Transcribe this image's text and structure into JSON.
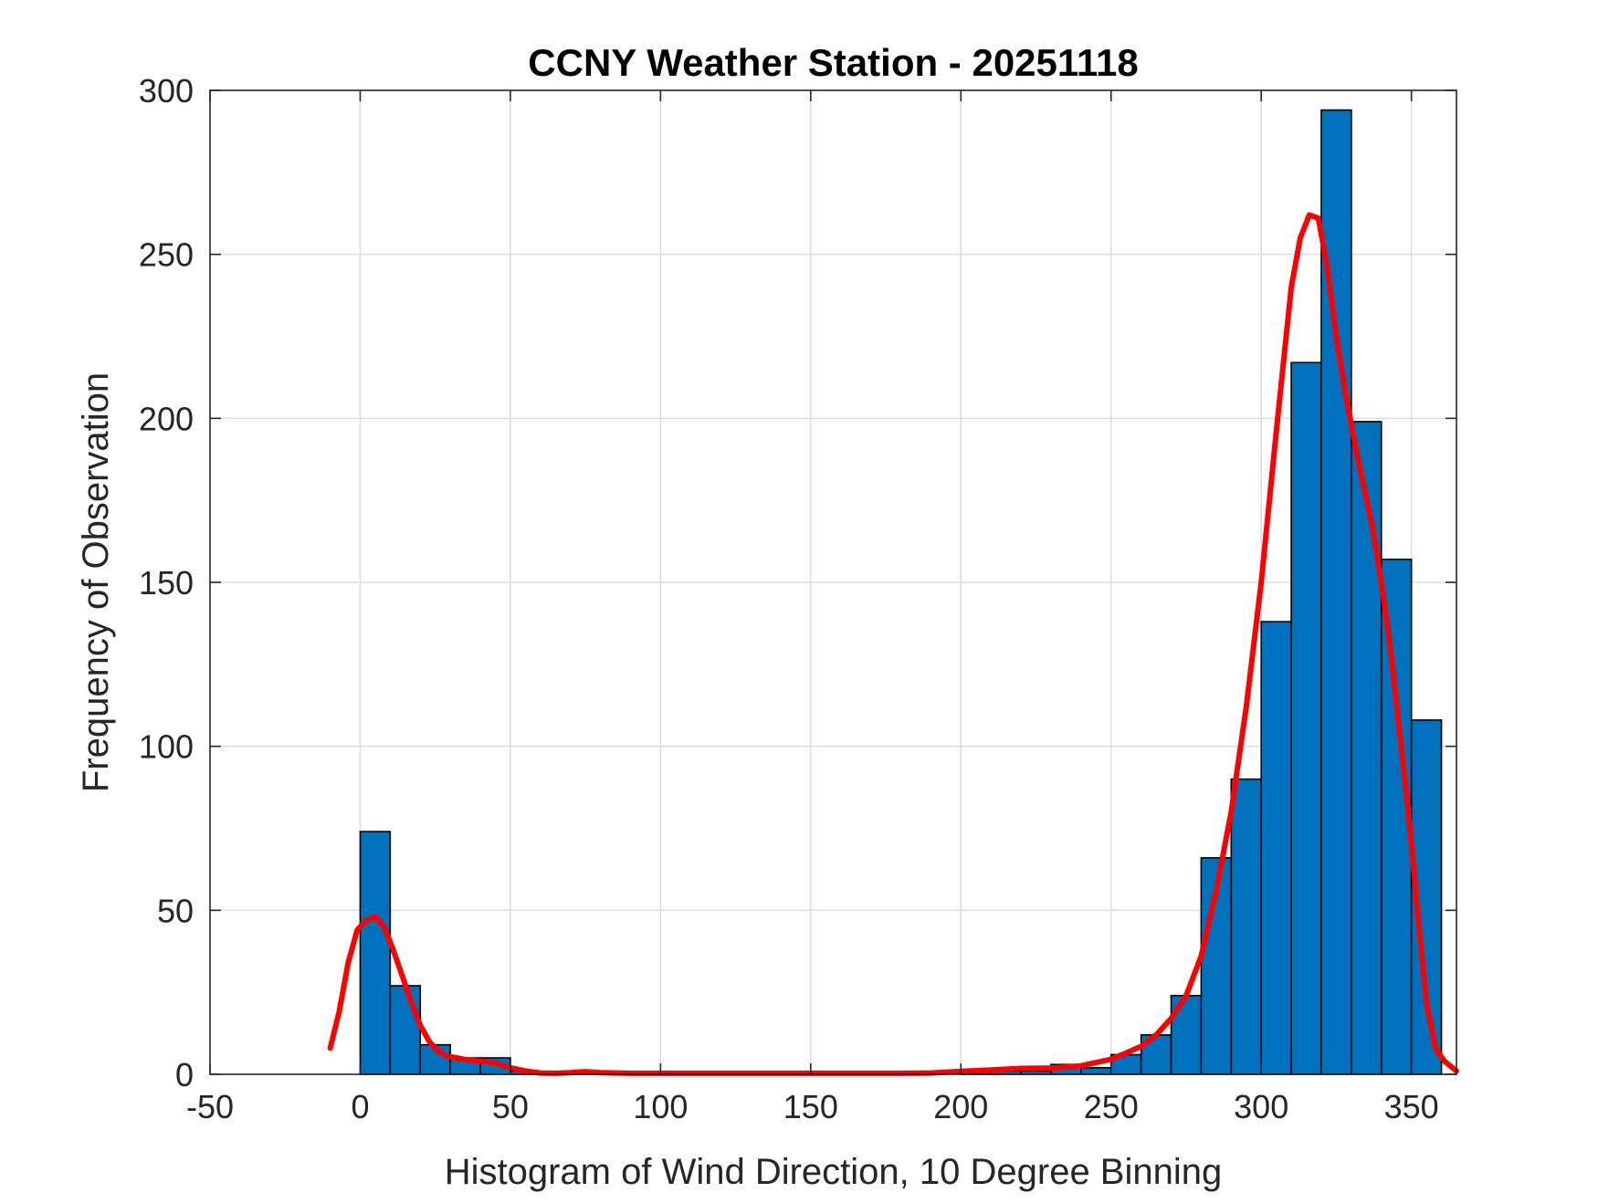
{
  "chart_data": {
    "type": "bar",
    "title": "CCNY Weather Station - 20251118",
    "xlabel": "Histogram of Wind Direction, 10 Degree Binning",
    "ylabel": "Frequency of Observation",
    "xlim": [
      -50,
      365
    ],
    "ylim": [
      0,
      300
    ],
    "xticks": [
      -50,
      0,
      50,
      100,
      150,
      200,
      250,
      300,
      350
    ],
    "yticks": [
      0,
      50,
      100,
      150,
      200,
      250,
      300
    ],
    "grid": true,
    "legend": "none",
    "colors": {
      "bars": "#0072BD",
      "bar_edge": "#000000",
      "curve": "#FF0000",
      "grid": "#dddddd",
      "axis": "#262626"
    },
    "bins": [
      {
        "start": 0,
        "end": 10,
        "count": 74
      },
      {
        "start": 10,
        "end": 20,
        "count": 27
      },
      {
        "start": 20,
        "end": 30,
        "count": 9
      },
      {
        "start": 30,
        "end": 40,
        "count": 5
      },
      {
        "start": 40,
        "end": 50,
        "count": 5
      },
      {
        "start": 50,
        "end": 60,
        "count": 1
      },
      {
        "start": 60,
        "end": 70,
        "count": 0
      },
      {
        "start": 70,
        "end": 80,
        "count": 1
      },
      {
        "start": 80,
        "end": 90,
        "count": 0
      },
      {
        "start": 90,
        "end": 100,
        "count": 0
      },
      {
        "start": 100,
        "end": 110,
        "count": 0
      },
      {
        "start": 110,
        "end": 120,
        "count": 0
      },
      {
        "start": 120,
        "end": 130,
        "count": 0
      },
      {
        "start": 130,
        "end": 140,
        "count": 0
      },
      {
        "start": 140,
        "end": 150,
        "count": 0
      },
      {
        "start": 150,
        "end": 160,
        "count": 0
      },
      {
        "start": 160,
        "end": 170,
        "count": 0
      },
      {
        "start": 170,
        "end": 180,
        "count": 0
      },
      {
        "start": 180,
        "end": 190,
        "count": 0
      },
      {
        "start": 190,
        "end": 200,
        "count": 0
      },
      {
        "start": 200,
        "end": 210,
        "count": 1
      },
      {
        "start": 210,
        "end": 220,
        "count": 1
      },
      {
        "start": 220,
        "end": 230,
        "count": 1
      },
      {
        "start": 230,
        "end": 240,
        "count": 3
      },
      {
        "start": 240,
        "end": 250,
        "count": 2
      },
      {
        "start": 250,
        "end": 260,
        "count": 6
      },
      {
        "start": 260,
        "end": 270,
        "count": 12
      },
      {
        "start": 270,
        "end": 280,
        "count": 24
      },
      {
        "start": 280,
        "end": 290,
        "count": 66
      },
      {
        "start": 290,
        "end": 300,
        "count": 90
      },
      {
        "start": 300,
        "end": 310,
        "count": 138
      },
      {
        "start": 310,
        "end": 320,
        "count": 217
      },
      {
        "start": 320,
        "end": 330,
        "count": 294
      },
      {
        "start": 330,
        "end": 340,
        "count": 199
      },
      {
        "start": 340,
        "end": 350,
        "count": 157
      },
      {
        "start": 350,
        "end": 360,
        "count": 108
      }
    ],
    "curve": {
      "x": [
        -10,
        -7,
        -4,
        -1,
        2,
        5,
        8,
        11,
        14,
        17,
        20,
        23,
        26,
        29,
        32,
        35,
        40,
        45,
        50,
        55,
        60,
        65,
        70,
        75,
        80,
        90,
        100,
        120,
        140,
        160,
        180,
        190,
        200,
        210,
        220,
        230,
        240,
        250,
        255,
        260,
        265,
        270,
        275,
        280,
        285,
        290,
        295,
        300,
        305,
        310,
        313,
        316,
        319,
        322,
        325,
        328,
        331,
        334,
        337,
        340,
        343,
        346,
        349,
        352,
        355,
        358,
        361,
        365
      ],
      "y": [
        8,
        19,
        34,
        44,
        47,
        48,
        45,
        38,
        30,
        22,
        15,
        10,
        7,
        5.5,
        5,
        4.5,
        4,
        3.5,
        2,
        1,
        0.4,
        0.3,
        0.5,
        0.8,
        0.5,
        0.3,
        0.3,
        0.3,
        0.3,
        0.3,
        0.3,
        0.4,
        0.9,
        1.3,
        1.8,
        1.9,
        2.6,
        4.6,
        6.5,
        8.5,
        12,
        17,
        24,
        36,
        56,
        80,
        112,
        150,
        196,
        240,
        255,
        262,
        261,
        246,
        225,
        208,
        193,
        180,
        167,
        150,
        130,
        105,
        80,
        50,
        22,
        8,
        4,
        1
      ]
    }
  }
}
